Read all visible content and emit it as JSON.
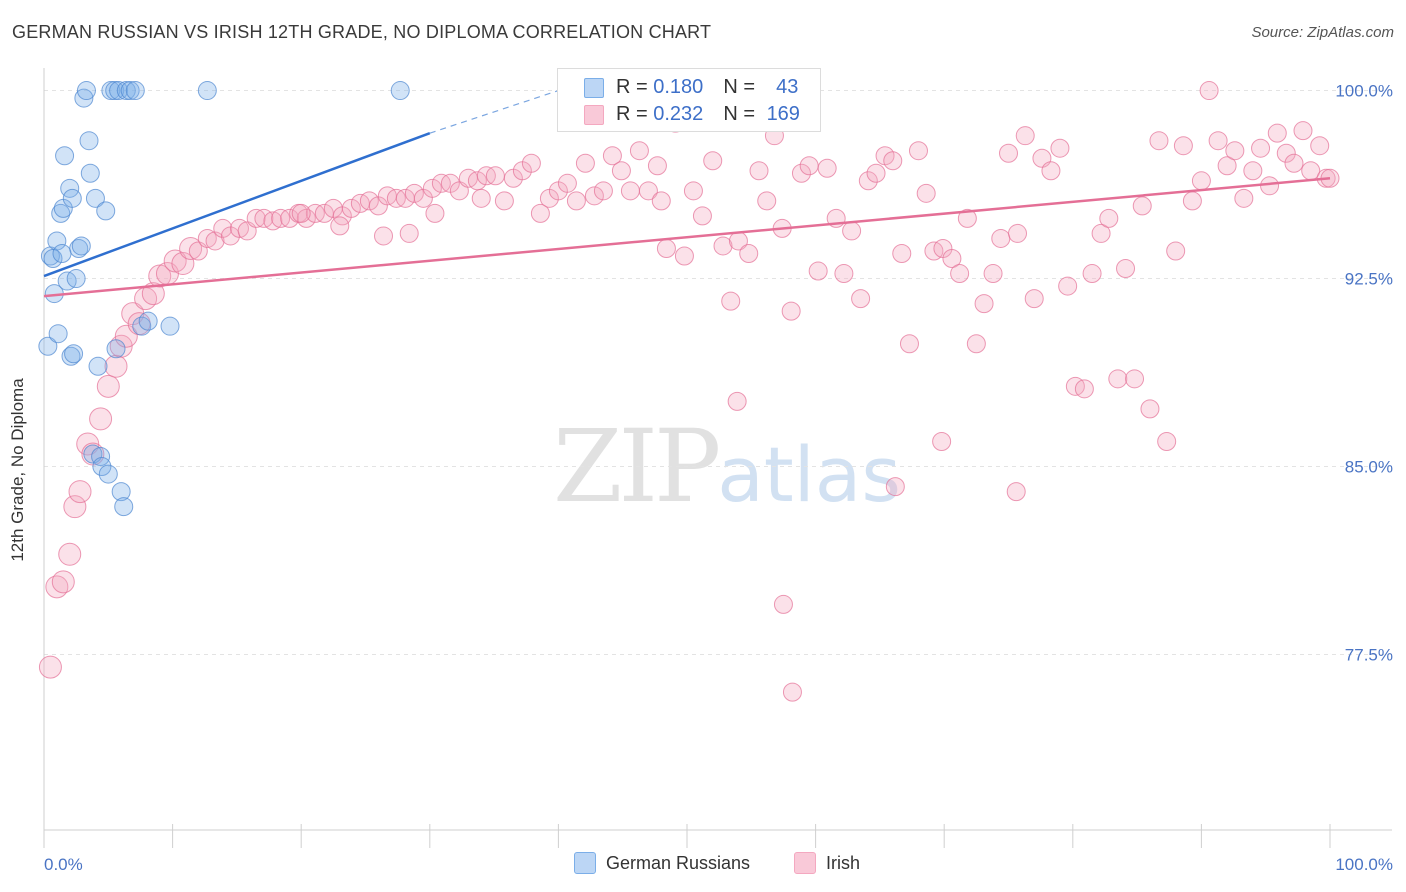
{
  "title": "GERMAN RUSSIAN VS IRISH 12TH GRADE, NO DIPLOMA CORRELATION CHART",
  "source": "Source: ZipAtlas.com",
  "watermark": {
    "zip": "ZIP",
    "atlas": "atlas"
  },
  "chart_data": {
    "type": "scatter",
    "title": "GERMAN RUSSIAN VS IRISH 12TH GRADE, NO DIPLOMA CORRELATION CHART",
    "xlabel": "",
    "ylabel": "12th Grade, No Diploma",
    "xlim": [
      0,
      100
    ],
    "ylim": [
      70.5,
      100.9
    ],
    "x_tick_labels": [
      "0.0%",
      "100.0%"
    ],
    "y_ticks": [
      77.5,
      85.0,
      92.5,
      100.0
    ],
    "y_tick_labels": [
      "77.5%",
      "85.0%",
      "92.5%",
      "100.0%"
    ],
    "grid": true,
    "legend_position": "top-center",
    "series": [
      {
        "name": "German Russians",
        "color": "#7baee8",
        "stroke": "#4b86d0",
        "R": "0.180",
        "N": "43",
        "trend": {
          "x": [
            0,
            30
          ],
          "y": [
            92.6,
            98.3
          ],
          "extended_to": [
            40,
            100.0
          ]
        },
        "points": [
          [
            0.3,
            89.8
          ],
          [
            0.5,
            93.4
          ],
          [
            0.7,
            93.3
          ],
          [
            0.8,
            91.9
          ],
          [
            1.0,
            94.0
          ],
          [
            1.1,
            90.3
          ],
          [
            1.3,
            95.1
          ],
          [
            1.4,
            93.5
          ],
          [
            1.5,
            95.3
          ],
          [
            1.6,
            97.4
          ],
          [
            1.8,
            92.4
          ],
          [
            2.0,
            96.1
          ],
          [
            2.1,
            89.4
          ],
          [
            2.2,
            95.7
          ],
          [
            2.3,
            89.5
          ],
          [
            2.5,
            92.5
          ],
          [
            2.7,
            93.7
          ],
          [
            2.9,
            93.8
          ],
          [
            3.1,
            99.7
          ],
          [
            3.3,
            100.0
          ],
          [
            3.5,
            98.0
          ],
          [
            3.6,
            96.7
          ],
          [
            3.8,
            85.5
          ],
          [
            4.0,
            95.7
          ],
          [
            4.2,
            89.0
          ],
          [
            4.4,
            85.4
          ],
          [
            4.5,
            85.0
          ],
          [
            4.8,
            95.2
          ],
          [
            5.0,
            84.7
          ],
          [
            5.2,
            100.0
          ],
          [
            5.5,
            100.0
          ],
          [
            5.8,
            100.0
          ],
          [
            5.6,
            89.7
          ],
          [
            6.0,
            84.0
          ],
          [
            6.2,
            83.4
          ],
          [
            6.4,
            100.0
          ],
          [
            6.7,
            100.0
          ],
          [
            7.1,
            100.0
          ],
          [
            7.6,
            90.6
          ],
          [
            8.1,
            90.8
          ],
          [
            9.8,
            90.6
          ],
          [
            12.7,
            100.0
          ],
          [
            27.7,
            100.0
          ]
        ]
      },
      {
        "name": "Irish",
        "color": "#f4a8c0",
        "stroke": "#e46f96",
        "R": "0.232",
        "N": "169",
        "trend": {
          "x": [
            0,
            100
          ],
          "y": [
            91.8,
            96.5
          ]
        },
        "points": [
          [
            0.5,
            77.0
          ],
          [
            1.0,
            80.2
          ],
          [
            1.5,
            80.4
          ],
          [
            2.0,
            81.5
          ],
          [
            2.4,
            83.4
          ],
          [
            2.8,
            84.0
          ],
          [
            3.4,
            85.9
          ],
          [
            3.8,
            85.5
          ],
          [
            4.4,
            86.9
          ],
          [
            5.0,
            88.2
          ],
          [
            5.6,
            89.0
          ],
          [
            6.0,
            89.8
          ],
          [
            6.4,
            90.2
          ],
          [
            6.9,
            91.1
          ],
          [
            7.4,
            90.7
          ],
          [
            7.9,
            91.7
          ],
          [
            8.5,
            91.9
          ],
          [
            9.0,
            92.6
          ],
          [
            9.6,
            92.7
          ],
          [
            10.2,
            93.2
          ],
          [
            10.8,
            93.1
          ],
          [
            11.4,
            93.7
          ],
          [
            12.0,
            93.6
          ],
          [
            12.7,
            94.1
          ],
          [
            13.3,
            94.0
          ],
          [
            13.9,
            94.5
          ],
          [
            14.5,
            94.2
          ],
          [
            15.2,
            94.5
          ],
          [
            15.8,
            94.4
          ],
          [
            16.5,
            94.9
          ],
          [
            17.1,
            94.9
          ],
          [
            17.8,
            94.8
          ],
          [
            18.4,
            94.9
          ],
          [
            19.1,
            94.9
          ],
          [
            19.8,
            95.1
          ],
          [
            20.4,
            94.9
          ],
          [
            21.1,
            95.1
          ],
          [
            21.8,
            95.1
          ],
          [
            22.5,
            95.3
          ],
          [
            23.2,
            95.0
          ],
          [
            23.9,
            95.3
          ],
          [
            24.6,
            95.5
          ],
          [
            25.3,
            95.6
          ],
          [
            26.0,
            95.4
          ],
          [
            26.7,
            95.8
          ],
          [
            27.4,
            95.7
          ],
          [
            28.1,
            95.7
          ],
          [
            28.8,
            95.9
          ],
          [
            29.5,
            95.7
          ],
          [
            30.2,
            96.1
          ],
          [
            30.9,
            96.3
          ],
          [
            31.6,
            96.3
          ],
          [
            32.3,
            96.0
          ],
          [
            33.0,
            96.5
          ],
          [
            33.7,
            96.4
          ],
          [
            34.4,
            96.6
          ],
          [
            35.1,
            96.6
          ],
          [
            35.8,
            95.6
          ],
          [
            36.5,
            96.5
          ],
          [
            37.2,
            96.8
          ],
          [
            37.9,
            97.1
          ],
          [
            38.6,
            95.1
          ],
          [
            39.3,
            95.7
          ],
          [
            40.0,
            96.0
          ],
          [
            40.7,
            96.3
          ],
          [
            41.4,
            95.6
          ],
          [
            42.1,
            97.1
          ],
          [
            42.8,
            95.8
          ],
          [
            43.5,
            96.0
          ],
          [
            44.2,
            97.4
          ],
          [
            44.9,
            96.8
          ],
          [
            45.6,
            96.0
          ],
          [
            46.3,
            97.6
          ],
          [
            47.0,
            96.0
          ],
          [
            47.7,
            97.0
          ],
          [
            48.4,
            93.7
          ],
          [
            49.1,
            98.7
          ],
          [
            49.8,
            93.4
          ],
          [
            30.4,
            95.1
          ],
          [
            34.0,
            95.7
          ],
          [
            28.4,
            94.3
          ],
          [
            26.4,
            94.2
          ],
          [
            23.0,
            94.6
          ],
          [
            20.0,
            95.1
          ],
          [
            50.5,
            96.0
          ],
          [
            51.2,
            95.0
          ],
          [
            52.0,
            97.2
          ],
          [
            52.8,
            93.8
          ],
          [
            53.4,
            91.6
          ],
          [
            54.0,
            94.0
          ],
          [
            54.8,
            93.5
          ],
          [
            55.6,
            96.8
          ],
          [
            56.2,
            95.6
          ],
          [
            56.8,
            98.2
          ],
          [
            57.4,
            94.5
          ],
          [
            58.1,
            91.2
          ],
          [
            58.9,
            96.7
          ],
          [
            59.5,
            97.0
          ],
          [
            60.2,
            92.8
          ],
          [
            60.9,
            96.9
          ],
          [
            61.6,
            94.9
          ],
          [
            62.2,
            92.7
          ],
          [
            62.8,
            94.4
          ],
          [
            63.5,
            91.7
          ],
          [
            64.1,
            96.4
          ],
          [
            64.7,
            96.7
          ],
          [
            65.4,
            97.4
          ],
          [
            66.0,
            97.2
          ],
          [
            66.7,
            93.5
          ],
          [
            67.3,
            89.9
          ],
          [
            68.0,
            97.6
          ],
          [
            68.6,
            95.9
          ],
          [
            69.2,
            93.6
          ],
          [
            69.9,
            93.7
          ],
          [
            70.6,
            93.3
          ],
          [
            71.2,
            92.7
          ],
          [
            71.8,
            94.9
          ],
          [
            72.5,
            89.9
          ],
          [
            73.1,
            91.5
          ],
          [
            73.8,
            92.7
          ],
          [
            74.4,
            94.1
          ],
          [
            75.0,
            97.5
          ],
          [
            75.7,
            94.3
          ],
          [
            76.3,
            98.2
          ],
          [
            77.0,
            91.7
          ],
          [
            77.6,
            97.3
          ],
          [
            78.3,
            96.8
          ],
          [
            79.0,
            97.7
          ],
          [
            79.6,
            92.2
          ],
          [
            80.2,
            88.2
          ],
          [
            80.9,
            88.1
          ],
          [
            81.5,
            92.7
          ],
          [
            82.2,
            94.3
          ],
          [
            82.8,
            94.9
          ],
          [
            83.5,
            88.5
          ],
          [
            84.1,
            92.9
          ],
          [
            84.8,
            88.5
          ],
          [
            85.4,
            95.4
          ],
          [
            86.0,
            87.3
          ],
          [
            86.7,
            98.0
          ],
          [
            87.3,
            86.0
          ],
          [
            88.0,
            93.6
          ],
          [
            88.6,
            97.8
          ],
          [
            89.3,
            95.6
          ],
          [
            90.0,
            96.4
          ],
          [
            90.6,
            100.0
          ],
          [
            91.3,
            98.0
          ],
          [
            92.0,
            97.0
          ],
          [
            92.6,
            97.6
          ],
          [
            93.3,
            95.7
          ],
          [
            94.0,
            96.8
          ],
          [
            94.6,
            97.7
          ],
          [
            95.3,
            96.2
          ],
          [
            95.9,
            98.3
          ],
          [
            96.6,
            97.5
          ],
          [
            97.2,
            97.1
          ],
          [
            97.9,
            98.4
          ],
          [
            98.5,
            96.8
          ],
          [
            99.2,
            97.8
          ],
          [
            99.7,
            96.5
          ],
          [
            100.0,
            96.5
          ],
          [
            48.0,
            95.6
          ],
          [
            53.9,
            87.6
          ],
          [
            57.5,
            79.5
          ],
          [
            58.2,
            76.0
          ],
          [
            66.2,
            84.2
          ],
          [
            69.8,
            86.0
          ],
          [
            75.6,
            84.0
          ]
        ]
      }
    ]
  }
}
